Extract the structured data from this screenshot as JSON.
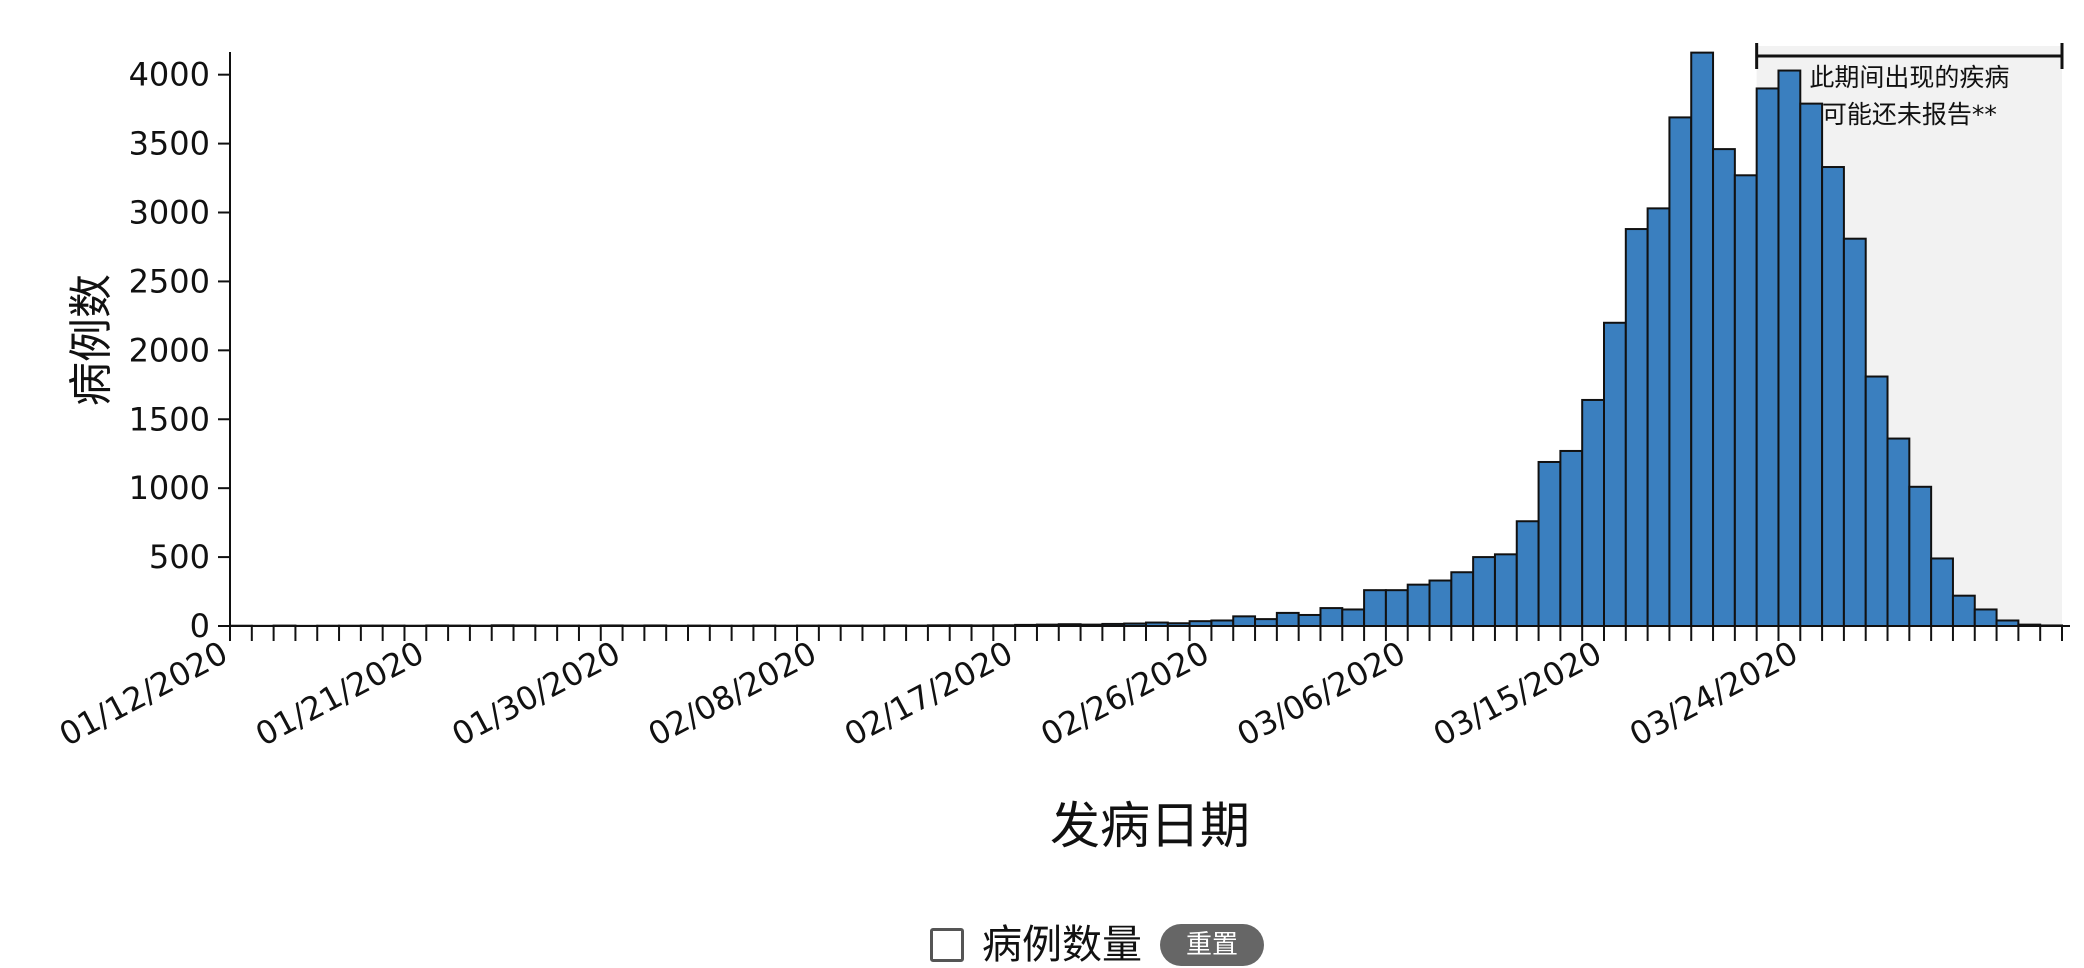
{
  "chart_data": {
    "type": "bar",
    "ylabel": "病例数",
    "xlabel": "发病日期",
    "ylim": [
      0,
      4150
    ],
    "y_ticks": [
      0,
      500,
      1000,
      1500,
      2000,
      2500,
      3000,
      3500,
      4000
    ],
    "x_start_date": "01/12/2020",
    "x_tick_labels": [
      "01/12/2020",
      "01/21/2020",
      "01/30/2020",
      "02/08/2020",
      "02/17/2020",
      "02/26/2020",
      "03/06/2020",
      "03/15/2020",
      "03/24/2020"
    ],
    "series": [
      {
        "name": "病例数量",
        "values": [
          2,
          1,
          3,
          1,
          2,
          2,
          3,
          3,
          2,
          4,
          3,
          2,
          5,
          4,
          3,
          3,
          2,
          4,
          3,
          4,
          2,
          3,
          2,
          2,
          3,
          2,
          3,
          3,
          3,
          3,
          4,
          3,
          5,
          5,
          4,
          5,
          8,
          10,
          13,
          10,
          15,
          18,
          25,
          20,
          35,
          40,
          70,
          50,
          95,
          80,
          130,
          120,
          260,
          260,
          300,
          330,
          390,
          500,
          520,
          760,
          1190,
          1270,
          1640,
          2200,
          2880,
          3030,
          3690,
          4160,
          3460,
          3270,
          3900,
          4030,
          3790,
          3330,
          2810,
          1810,
          1360,
          1010,
          490,
          220,
          120,
          40,
          10,
          4
        ]
      }
    ],
    "color": "#3a7fbf",
    "annotation": {
      "text_lines": [
        "此期间出现的疾病",
        "可能还未报告**"
      ],
      "start_date": "03/22/2020"
    }
  },
  "legend": {
    "label": "病例数量",
    "reset_label": "重置"
  }
}
